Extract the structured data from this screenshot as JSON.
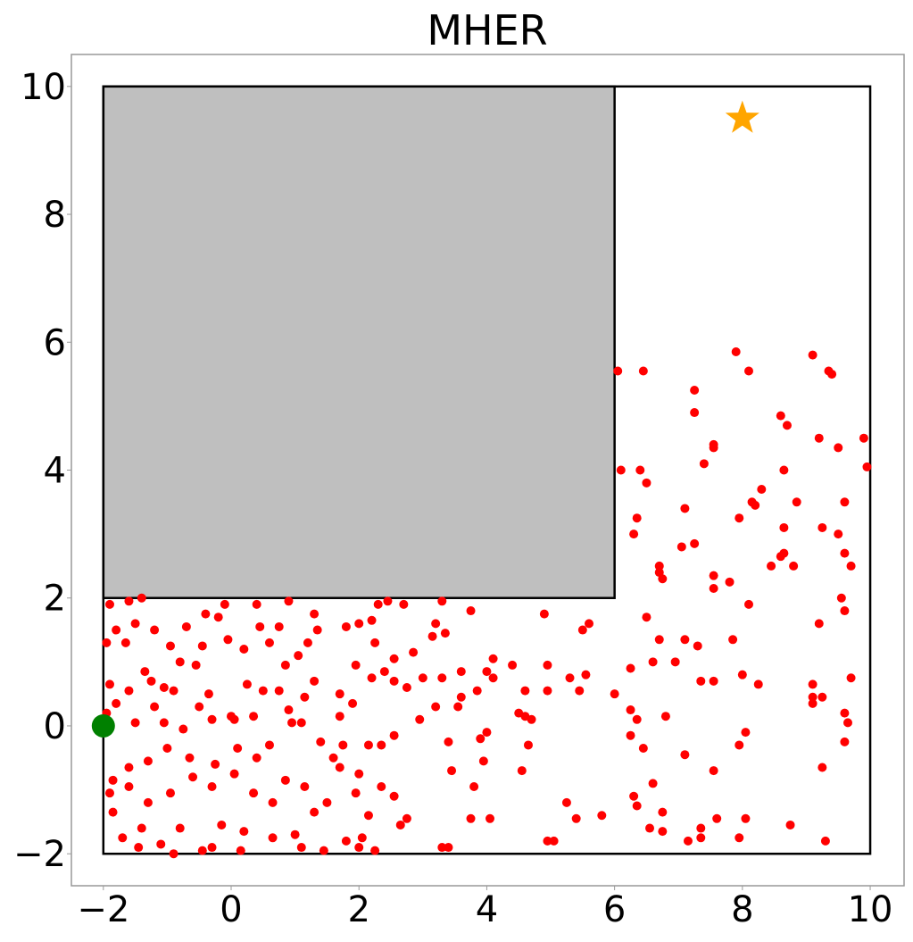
{
  "chart_data": {
    "type": "scatter",
    "title": "MHER",
    "xlim": [
      -2.5,
      10.53
    ],
    "ylim": [
      -2.5,
      10.5
    ],
    "xticks": [
      {
        "value": -2,
        "label": "−2"
      },
      0,
      2,
      4,
      6,
      8,
      10
    ],
    "yticks": [
      {
        "value": -2,
        "label": "−2"
      },
      0,
      2,
      4,
      6,
      8,
      10
    ],
    "boundary": {
      "x": [
        -2,
        10
      ],
      "y": [
        -2,
        10
      ],
      "color": "#000000"
    },
    "obstacle": {
      "x": [
        -2,
        6
      ],
      "y": [
        2,
        10
      ],
      "color": "#bfbfbf"
    },
    "start": {
      "x": -2,
      "y": 0,
      "color": "#008000"
    },
    "goal": {
      "x": 8,
      "y": 9.5,
      "color": "#ffa500"
    },
    "points_color": "#ff0000",
    "points": [
      [
        6.05,
        5.55
      ],
      [
        6.45,
        5.55
      ],
      [
        6.4,
        4.0
      ],
      [
        6.5,
        3.8
      ],
      [
        6.35,
        3.25
      ],
      [
        6.3,
        3.0
      ],
      [
        6.7,
        2.5
      ],
      [
        6.75,
        2.3
      ],
      [
        7.25,
        5.25
      ],
      [
        7.25,
        4.9
      ],
      [
        7.4,
        4.1
      ],
      [
        7.1,
        3.4
      ],
      [
        7.25,
        2.85
      ],
      [
        7.05,
        2.8
      ],
      [
        7.9,
        5.85
      ],
      [
        8.1,
        5.55
      ],
      [
        7.95,
        3.25
      ],
      [
        8.15,
        3.5
      ],
      [
        8.3,
        3.7
      ],
      [
        8.45,
        2.5
      ],
      [
        8.6,
        4.85
      ],
      [
        8.7,
        4.7
      ],
      [
        8.65,
        4.0
      ],
      [
        8.65,
        3.1
      ],
      [
        8.6,
        2.65
      ],
      [
        8.65,
        2.7
      ],
      [
        8.85,
        3.5
      ],
      [
        8.8,
        2.5
      ],
      [
        9.1,
        5.8
      ],
      [
        9.2,
        4.5
      ],
      [
        9.35,
        5.55
      ],
      [
        9.4,
        5.5
      ],
      [
        9.5,
        4.35
      ],
      [
        9.9,
        4.5
      ],
      [
        9.95,
        4.05
      ],
      [
        9.25,
        3.1
      ],
      [
        9.5,
        3.0
      ],
      [
        9.6,
        3.5
      ],
      [
        9.6,
        2.7
      ],
      [
        9.7,
        2.5
      ],
      [
        7.55,
        4.4
      ],
      [
        7.55,
        4.35
      ],
      [
        7.55,
        2.35
      ],
      [
        7.55,
        2.15
      ],
      [
        7.8,
        2.25
      ],
      [
        8.1,
        1.9
      ],
      [
        6.7,
        2.4
      ],
      [
        6.1,
        4.0
      ],
      [
        8.2,
        3.45
      ],
      [
        4.9,
        1.75
      ],
      [
        5.5,
        1.5
      ],
      [
        5.6,
        1.6
      ],
      [
        5.3,
        0.75
      ],
      [
        5.45,
        0.55
      ],
      [
        5.55,
        0.8
      ],
      [
        4.95,
        0.95
      ],
      [
        4.6,
        0.55
      ],
      [
        4.95,
        0.55
      ],
      [
        4.65,
        -0.3
      ],
      [
        4.7,
        0.1
      ],
      [
        4.6,
        0.15
      ],
      [
        4.5,
        0.2
      ],
      [
        4.4,
        0.95
      ],
      [
        4.1,
        0.75
      ],
      [
        4.1,
        1.05
      ],
      [
        4.0,
        0.85
      ],
      [
        3.85,
        0.55
      ],
      [
        4.0,
        -0.1
      ],
      [
        3.9,
        -0.2
      ],
      [
        3.95,
        -0.55
      ],
      [
        3.75,
        -1.45
      ],
      [
        4.05,
        -1.45
      ],
      [
        4.55,
        -0.7
      ],
      [
        4.95,
        -1.8
      ],
      [
        5.05,
        -1.8
      ],
      [
        5.25,
        -1.2
      ],
      [
        5.4,
        -1.45
      ],
      [
        5.8,
        -1.4
      ],
      [
        6.0,
        0.5
      ],
      [
        6.25,
        0.9
      ],
      [
        6.25,
        0.25
      ],
      [
        6.35,
        0.1
      ],
      [
        6.25,
        -0.15
      ],
      [
        6.45,
        -0.35
      ],
      [
        6.3,
        -1.1
      ],
      [
        6.35,
        -1.25
      ],
      [
        6.6,
        -0.9
      ],
      [
        6.55,
        -1.6
      ],
      [
        6.75,
        -1.65
      ],
      [
        6.75,
        -1.35
      ],
      [
        6.8,
        0.15
      ],
      [
        6.6,
        1.0
      ],
      [
        6.7,
        1.35
      ],
      [
        6.5,
        1.7
      ],
      [
        6.95,
        1.0
      ],
      [
        7.1,
        1.35
      ],
      [
        7.1,
        -0.45
      ],
      [
        7.15,
        -1.8
      ],
      [
        7.35,
        -1.75
      ],
      [
        7.35,
        -1.6
      ],
      [
        7.3,
        1.25
      ],
      [
        7.35,
        0.7
      ],
      [
        7.55,
        0.7
      ],
      [
        7.55,
        -0.7
      ],
      [
        7.6,
        -1.45
      ],
      [
        7.85,
        1.35
      ],
      [
        8.0,
        0.8
      ],
      [
        7.95,
        -0.3
      ],
      [
        8.05,
        -0.1
      ],
      [
        8.05,
        -1.45
      ],
      [
        7.95,
        -1.75
      ],
      [
        8.25,
        0.65
      ],
      [
        8.75,
        -1.55
      ],
      [
        9.1,
        0.65
      ],
      [
        9.1,
        0.45
      ],
      [
        9.1,
        0.35
      ],
      [
        9.25,
        0.45
      ],
      [
        9.2,
        1.6
      ],
      [
        9.25,
        -0.65
      ],
      [
        9.3,
        -1.8
      ],
      [
        9.7,
        0.75
      ],
      [
        9.6,
        0.2
      ],
      [
        9.65,
        0.05
      ],
      [
        9.6,
        -0.25
      ],
      [
        9.6,
        1.8
      ],
      [
        9.55,
        2.0
      ],
      [
        2.7,
        1.9
      ],
      [
        2.3,
        1.9
      ],
      [
        2.45,
        1.95
      ],
      [
        3.3,
        1.95
      ],
      [
        3.35,
        1.45
      ],
      [
        3.75,
        1.8
      ],
      [
        3.2,
        1.6
      ],
      [
        3.15,
        1.4
      ],
      [
        2.85,
        1.15
      ],
      [
        2.55,
        1.05
      ],
      [
        2.25,
        1.3
      ],
      [
        2.0,
        1.6
      ],
      [
        2.2,
        1.65
      ],
      [
        1.8,
        1.55
      ],
      [
        1.95,
        0.95
      ],
      [
        1.9,
        0.35
      ],
      [
        1.7,
        0.5
      ],
      [
        1.7,
        0.15
      ],
      [
        2.2,
        0.75
      ],
      [
        2.4,
        0.85
      ],
      [
        2.55,
        0.7
      ],
      [
        2.75,
        0.6
      ],
      [
        3.0,
        0.75
      ],
      [
        3.3,
        0.75
      ],
      [
        3.6,
        0.85
      ],
      [
        3.6,
        0.45
      ],
      [
        3.55,
        0.3
      ],
      [
        3.2,
        0.3
      ],
      [
        2.95,
        0.1
      ],
      [
        2.55,
        -0.15
      ],
      [
        2.35,
        -0.3
      ],
      [
        2.15,
        -0.3
      ],
      [
        1.75,
        -0.3
      ],
      [
        1.7,
        -0.65
      ],
      [
        2.0,
        -0.75
      ],
      [
        2.35,
        -0.95
      ],
      [
        2.55,
        -1.1
      ],
      [
        2.15,
        -1.4
      ],
      [
        1.95,
        -1.05
      ],
      [
        2.75,
        -1.45
      ],
      [
        2.65,
        -1.55
      ],
      [
        3.4,
        -0.25
      ],
      [
        3.45,
        -0.7
      ],
      [
        3.3,
        -1.9
      ],
      [
        3.4,
        -1.9
      ],
      [
        3.8,
        -0.95
      ],
      [
        2.25,
        -1.95
      ],
      [
        2.0,
        -1.9
      ],
      [
        2.05,
        -1.75
      ],
      [
        1.8,
        -1.8
      ],
      [
        -1.9,
        1.9
      ],
      [
        -1.6,
        1.95
      ],
      [
        -1.4,
        2.0
      ],
      [
        -1.5,
        1.6
      ],
      [
        -1.8,
        1.5
      ],
      [
        -1.65,
        1.3
      ],
      [
        -1.2,
        1.5
      ],
      [
        -0.95,
        1.25
      ],
      [
        -0.7,
        1.55
      ],
      [
        -0.4,
        1.75
      ],
      [
        -0.2,
        1.7
      ],
      [
        -0.1,
        1.9
      ],
      [
        0.4,
        1.9
      ],
      [
        0.9,
        1.95
      ],
      [
        0.75,
        1.55
      ],
      [
        0.45,
        1.55
      ],
      [
        1.3,
        1.75
      ],
      [
        1.35,
        1.5
      ],
      [
        1.05,
        1.1
      ],
      [
        0.6,
        1.3
      ],
      [
        0.2,
        1.2
      ],
      [
        -0.05,
        1.35
      ],
      [
        -0.45,
        1.25
      ],
      [
        -0.8,
        1.0
      ],
      [
        -1.05,
        0.6
      ],
      [
        -1.35,
        0.85
      ],
      [
        -1.6,
        0.55
      ],
      [
        -1.9,
        0.65
      ],
      [
        -1.8,
        0.35
      ],
      [
        -1.5,
        0.05
      ],
      [
        -1.2,
        0.3
      ],
      [
        -1.05,
        0.05
      ],
      [
        -0.75,
        -0.05
      ],
      [
        -0.5,
        0.3
      ],
      [
        -0.3,
        0.1
      ],
      [
        0.0,
        0.15
      ],
      [
        0.05,
        0.1
      ],
      [
        0.35,
        0.15
      ],
      [
        0.5,
        0.55
      ],
      [
        0.75,
        0.55
      ],
      [
        0.85,
        0.95
      ],
      [
        1.3,
        0.7
      ],
      [
        1.15,
        0.45
      ],
      [
        0.9,
        0.25
      ],
      [
        0.95,
        0.05
      ],
      [
        0.6,
        -0.3
      ],
      [
        0.4,
        -0.5
      ],
      [
        0.1,
        -0.35
      ],
      [
        -0.25,
        -0.6
      ],
      [
        -0.65,
        -0.5
      ],
      [
        -1.0,
        -0.35
      ],
      [
        -1.3,
        -0.55
      ],
      [
        -1.6,
        -0.65
      ],
      [
        -1.85,
        -0.85
      ],
      [
        -1.6,
        -0.95
      ],
      [
        -1.3,
        -1.2
      ],
      [
        -0.95,
        -1.05
      ],
      [
        -0.6,
        -0.8
      ],
      [
        -0.3,
        -0.95
      ],
      [
        0.05,
        -0.75
      ],
      [
        0.35,
        -1.05
      ],
      [
        0.65,
        -1.2
      ],
      [
        0.85,
        -0.85
      ],
      [
        1.15,
        -0.95
      ],
      [
        1.3,
        -1.35
      ],
      [
        1.0,
        -1.7
      ],
      [
        0.65,
        -1.75
      ],
      [
        0.2,
        -1.65
      ],
      [
        -0.15,
        -1.55
      ],
      [
        -0.45,
        -1.95
      ],
      [
        -0.8,
        -1.6
      ],
      [
        -1.1,
        -1.85
      ],
      [
        -1.4,
        -1.6
      ],
      [
        -1.7,
        -1.75
      ],
      [
        -1.9,
        -1.05
      ],
      [
        -1.85,
        -1.35
      ],
      [
        -1.45,
        -1.9
      ],
      [
        -0.9,
        -2.0
      ],
      [
        -0.3,
        -1.9
      ],
      [
        0.15,
        -1.95
      ],
      [
        1.1,
        -1.9
      ],
      [
        1.45,
        -1.95
      ],
      [
        1.5,
        -1.2
      ],
      [
        1.6,
        -0.5
      ],
      [
        1.4,
        -0.25
      ],
      [
        1.1,
        0.05
      ],
      [
        1.2,
        1.3
      ],
      [
        0.25,
        0.65
      ],
      [
        -0.35,
        0.5
      ],
      [
        -0.9,
        0.55
      ],
      [
        -1.25,
        0.7
      ],
      [
        -0.55,
        0.95
      ],
      [
        -1.95,
        1.3
      ],
      [
        -1.95,
        0.2
      ]
    ]
  }
}
